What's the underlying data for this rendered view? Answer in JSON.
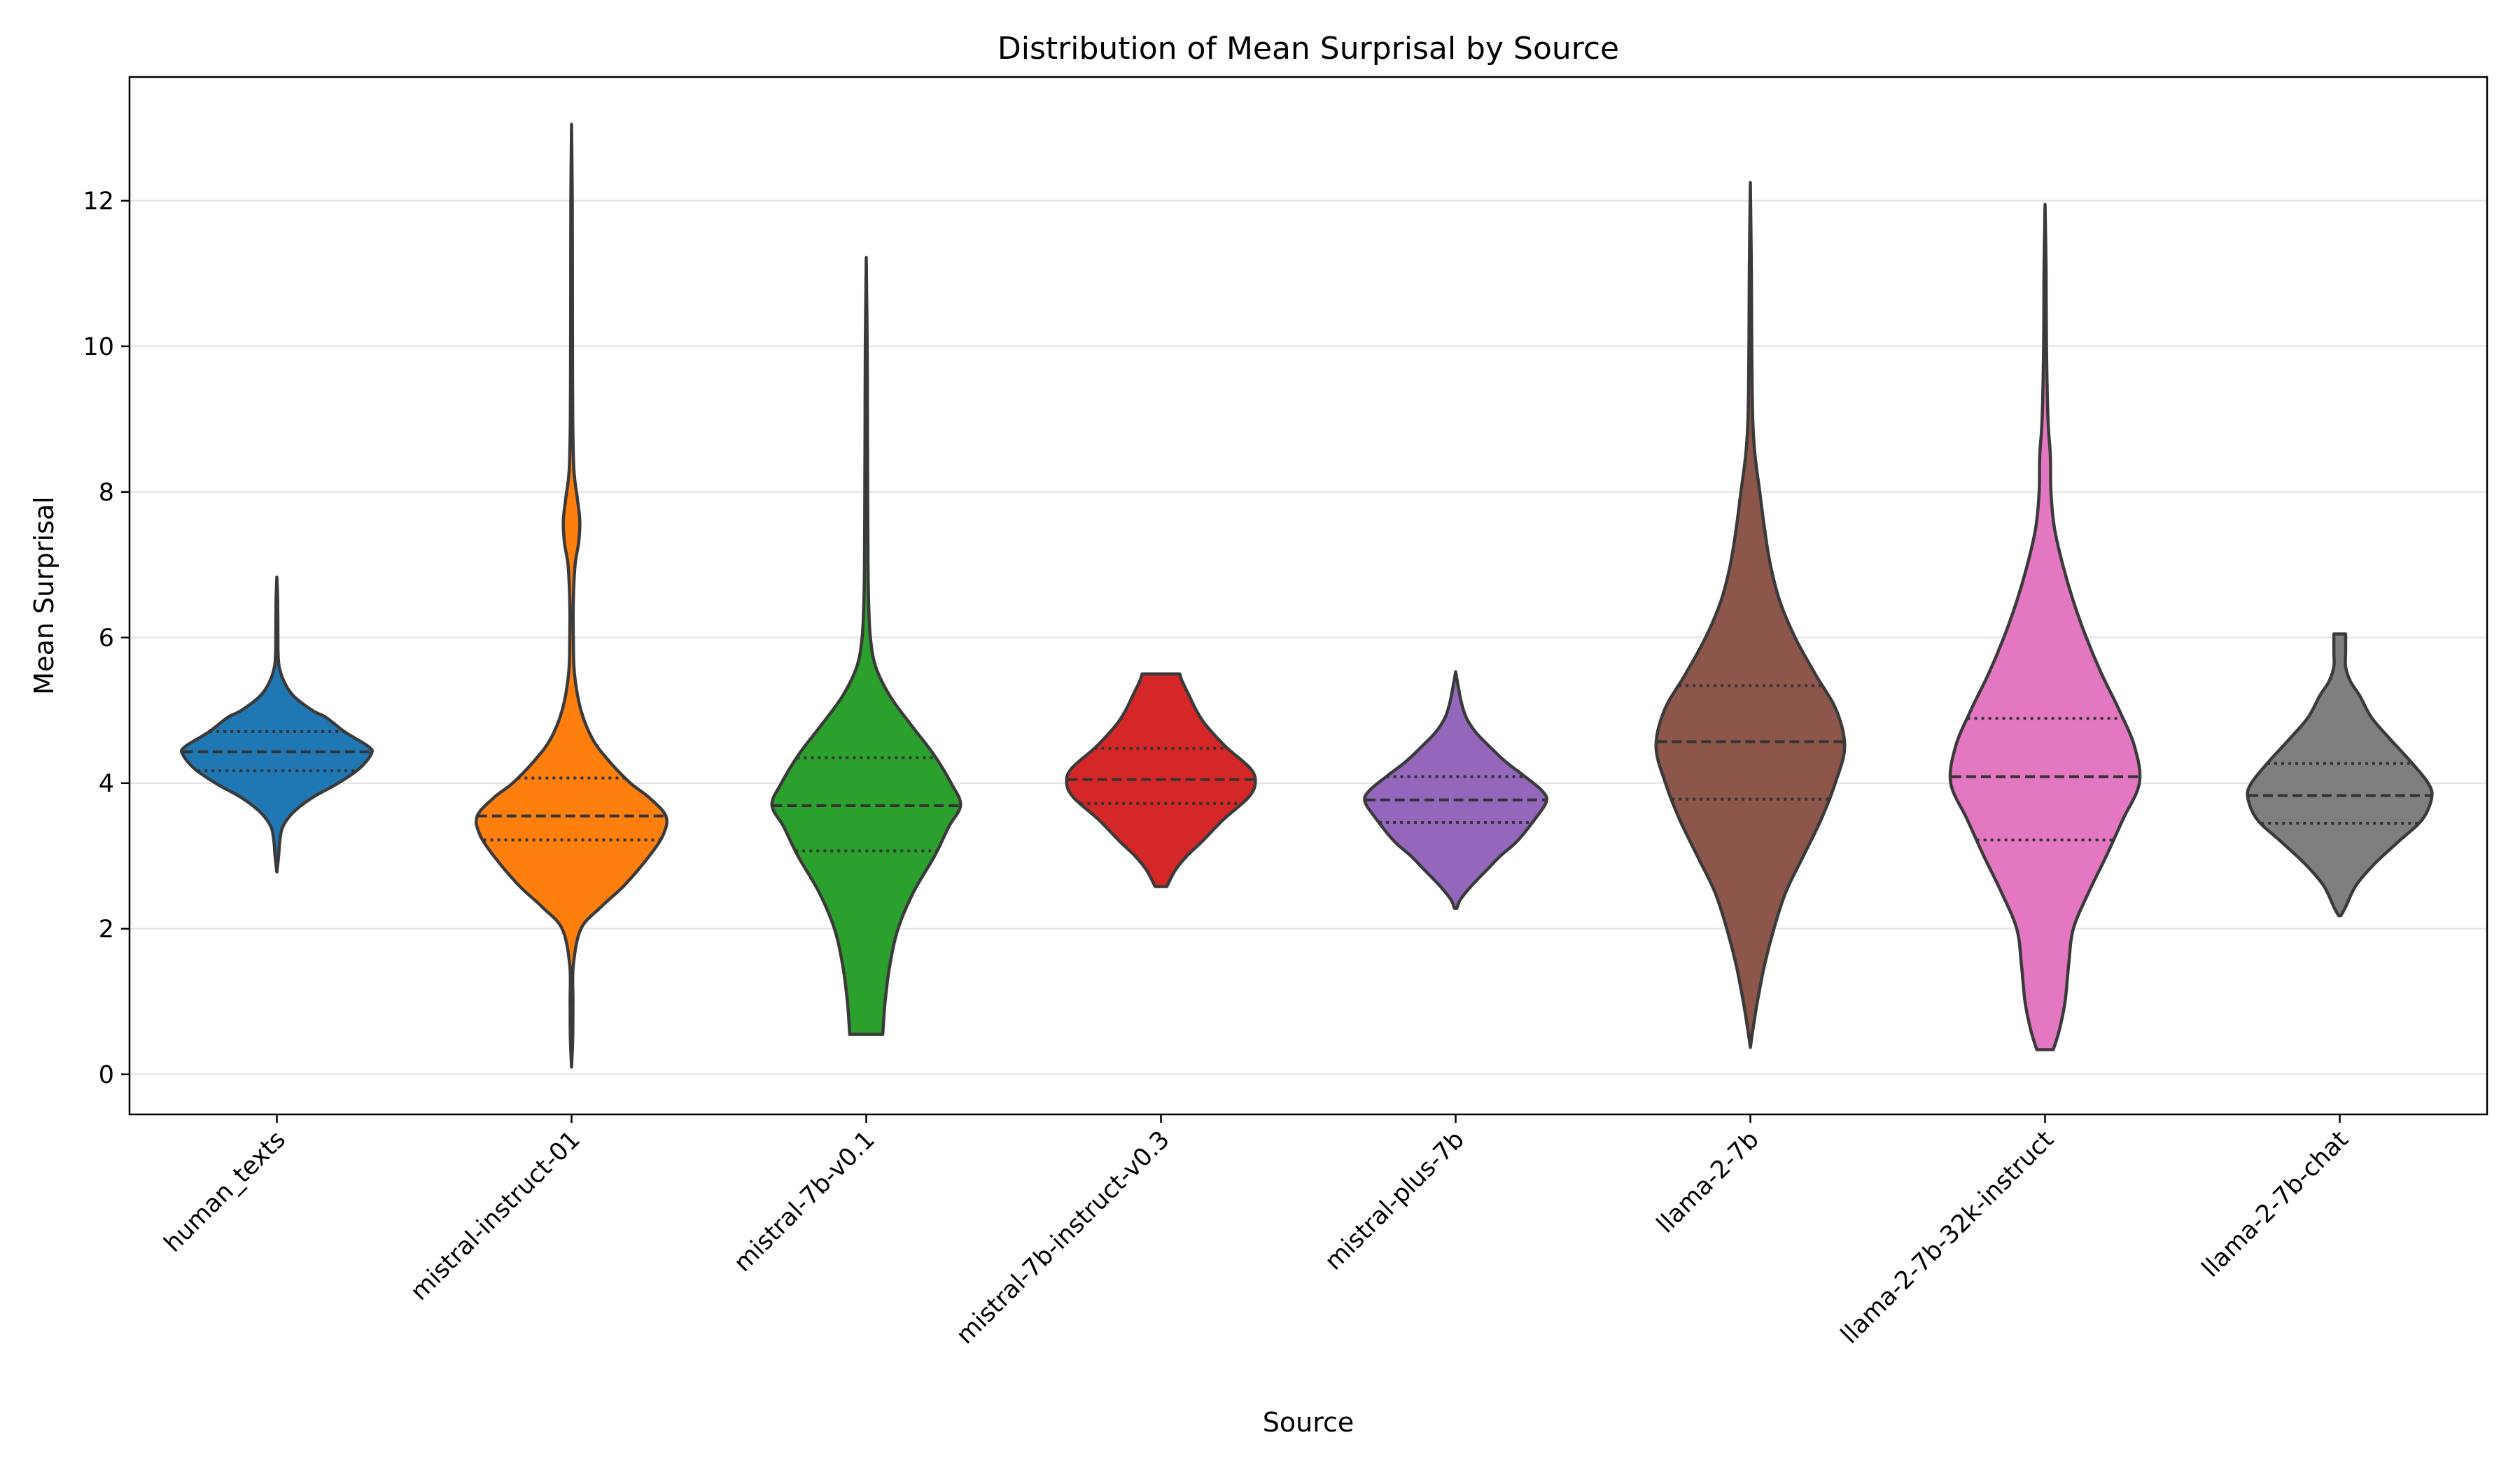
{
  "chart_data": {
    "type": "violin",
    "title": "Distribution of Mean Surprisal by Source",
    "xlabel": "Source",
    "ylabel": "Mean Surprisal",
    "ylim": [
      -0.55,
      13.7
    ],
    "yticks": [
      0,
      2,
      4,
      6,
      8,
      10,
      12
    ],
    "grid": "horizontal",
    "categories": [
      "human_texts",
      "mistral-instruct-01",
      "mistral-7b-v0.1",
      "mistral-7b-instruct-v0.3",
      "mistral-plus-7b",
      "llama-2-7b",
      "llama-2-7b-32k-instruct",
      "llama-2-7b-chat"
    ],
    "colors": [
      "#1f77b4",
      "#ff7f0e",
      "#2ca02c",
      "#d62728",
      "#9467bd",
      "#8c564b",
      "#e377c2",
      "#7f7f7f"
    ],
    "series": [
      {
        "min": 2.78,
        "max": 6.83,
        "q1": 4.17,
        "median": 4.43,
        "q3": 4.71,
        "profile": [
          [
            2.78,
            0.0
          ],
          [
            3.0,
            0.015
          ],
          [
            3.2,
            0.025
          ],
          [
            3.4,
            0.05
          ],
          [
            3.6,
            0.14
          ],
          [
            3.8,
            0.3
          ],
          [
            4.0,
            0.52
          ],
          [
            4.2,
            0.7
          ],
          [
            4.4,
            0.8
          ],
          [
            4.5,
            0.78
          ],
          [
            4.7,
            0.58
          ],
          [
            4.9,
            0.42
          ],
          [
            5.0,
            0.3
          ],
          [
            5.2,
            0.14
          ],
          [
            5.4,
            0.06
          ],
          [
            5.6,
            0.02
          ],
          [
            5.8,
            0.01
          ],
          [
            6.0,
            0.009
          ],
          [
            6.5,
            0.007
          ],
          [
            6.83,
            0.0
          ]
        ]
      },
      {
        "min": 0.1,
        "max": 13.05,
        "q1": 3.22,
        "median": 3.55,
        "q3": 4.07,
        "profile": [
          [
            0.1,
            0.0
          ],
          [
            0.5,
            0.01
          ],
          [
            1.0,
            0.012
          ],
          [
            1.5,
            0.015
          ],
          [
            2.0,
            0.08
          ],
          [
            2.3,
            0.25
          ],
          [
            2.6,
            0.45
          ],
          [
            3.0,
            0.66
          ],
          [
            3.3,
            0.78
          ],
          [
            3.55,
            0.8
          ],
          [
            3.8,
            0.66
          ],
          [
            4.0,
            0.5
          ],
          [
            4.3,
            0.32
          ],
          [
            4.6,
            0.18
          ],
          [
            5.0,
            0.08
          ],
          [
            5.5,
            0.025
          ],
          [
            6.0,
            0.015
          ],
          [
            6.5,
            0.015
          ],
          [
            7.0,
            0.03
          ],
          [
            7.3,
            0.06
          ],
          [
            7.6,
            0.07
          ],
          [
            7.9,
            0.05
          ],
          [
            8.3,
            0.02
          ],
          [
            9.0,
            0.01
          ],
          [
            10.0,
            0.008
          ],
          [
            11.0,
            0.007
          ],
          [
            12.0,
            0.006
          ],
          [
            13.05,
            0.0
          ]
        ]
      },
      {
        "min": 0.55,
        "max": 11.22,
        "q1": 3.07,
        "median": 3.69,
        "q3": 4.35,
        "profile": [
          [
            0.55,
            0.14
          ],
          [
            1.0,
            0.16
          ],
          [
            1.5,
            0.2
          ],
          [
            2.0,
            0.27
          ],
          [
            2.5,
            0.4
          ],
          [
            3.0,
            0.58
          ],
          [
            3.4,
            0.7
          ],
          [
            3.7,
            0.8
          ],
          [
            4.0,
            0.72
          ],
          [
            4.4,
            0.57
          ],
          [
            4.8,
            0.38
          ],
          [
            5.2,
            0.2
          ],
          [
            5.6,
            0.08
          ],
          [
            6.0,
            0.035
          ],
          [
            6.5,
            0.02
          ],
          [
            7.0,
            0.015
          ],
          [
            8.0,
            0.012
          ],
          [
            9.0,
            0.01
          ],
          [
            10.0,
            0.008
          ],
          [
            11.22,
            0.0
          ]
        ]
      },
      {
        "min": 2.58,
        "max": 5.5,
        "q1": 3.72,
        "median": 4.05,
        "q3": 4.48,
        "profile": [
          [
            2.58,
            0.05
          ],
          [
            2.8,
            0.12
          ],
          [
            3.0,
            0.22
          ],
          [
            3.2,
            0.35
          ],
          [
            3.5,
            0.53
          ],
          [
            3.8,
            0.74
          ],
          [
            4.0,
            0.8
          ],
          [
            4.2,
            0.76
          ],
          [
            4.5,
            0.55
          ],
          [
            4.8,
            0.38
          ],
          [
            5.0,
            0.3
          ],
          [
            5.2,
            0.24
          ],
          [
            5.4,
            0.18
          ],
          [
            5.5,
            0.16
          ]
        ]
      },
      {
        "min": 2.28,
        "max": 5.53,
        "q1": 3.46,
        "median": 3.77,
        "q3": 4.09,
        "profile": [
          [
            2.28,
            0.01
          ],
          [
            2.4,
            0.04
          ],
          [
            2.6,
            0.14
          ],
          [
            2.8,
            0.26
          ],
          [
            3.0,
            0.38
          ],
          [
            3.2,
            0.52
          ],
          [
            3.5,
            0.67
          ],
          [
            3.75,
            0.77
          ],
          [
            3.9,
            0.73
          ],
          [
            4.1,
            0.58
          ],
          [
            4.3,
            0.42
          ],
          [
            4.5,
            0.29
          ],
          [
            4.7,
            0.17
          ],
          [
            4.9,
            0.09
          ],
          [
            5.1,
            0.05
          ],
          [
            5.3,
            0.025
          ],
          [
            5.53,
            0.0
          ]
        ]
      },
      {
        "min": 0.37,
        "max": 12.25,
        "q1": 3.78,
        "median": 4.57,
        "q3": 5.34,
        "profile": [
          [
            0.37,
            0.0
          ],
          [
            0.6,
            0.02
          ],
          [
            1.0,
            0.06
          ],
          [
            1.5,
            0.12
          ],
          [
            2.0,
            0.2
          ],
          [
            2.5,
            0.3
          ],
          [
            3.0,
            0.45
          ],
          [
            3.5,
            0.6
          ],
          [
            4.0,
            0.72
          ],
          [
            4.5,
            0.8
          ],
          [
            5.0,
            0.73
          ],
          [
            5.5,
            0.55
          ],
          [
            6.0,
            0.38
          ],
          [
            6.5,
            0.25
          ],
          [
            7.0,
            0.17
          ],
          [
            7.5,
            0.12
          ],
          [
            8.0,
            0.08
          ],
          [
            8.5,
            0.04
          ],
          [
            9.0,
            0.02
          ],
          [
            10.0,
            0.012
          ],
          [
            11.0,
            0.009
          ],
          [
            12.25,
            0.0
          ]
        ]
      },
      {
        "min": 0.34,
        "max": 11.95,
        "q1": 3.22,
        "median": 4.09,
        "q3": 4.89,
        "profile": [
          [
            0.34,
            0.07
          ],
          [
            0.6,
            0.12
          ],
          [
            1.0,
            0.17
          ],
          [
            1.5,
            0.2
          ],
          [
            2.0,
            0.24
          ],
          [
            2.5,
            0.37
          ],
          [
            3.0,
            0.52
          ],
          [
            3.5,
            0.66
          ],
          [
            4.0,
            0.8
          ],
          [
            4.5,
            0.76
          ],
          [
            5.0,
            0.63
          ],
          [
            5.5,
            0.48
          ],
          [
            6.0,
            0.35
          ],
          [
            6.5,
            0.24
          ],
          [
            7.0,
            0.15
          ],
          [
            7.5,
            0.08
          ],
          [
            8.0,
            0.05
          ],
          [
            8.5,
            0.045
          ],
          [
            9.0,
            0.025
          ],
          [
            10.0,
            0.012
          ],
          [
            11.0,
            0.009
          ],
          [
            11.95,
            0.0
          ]
        ]
      },
      {
        "min": 2.18,
        "max": 6.05,
        "q1": 3.45,
        "median": 3.83,
        "q3": 4.27,
        "profile": [
          [
            2.18,
            0.01
          ],
          [
            2.3,
            0.05
          ],
          [
            2.6,
            0.14
          ],
          [
            2.9,
            0.3
          ],
          [
            3.2,
            0.5
          ],
          [
            3.5,
            0.7
          ],
          [
            3.8,
            0.78
          ],
          [
            4.0,
            0.75
          ],
          [
            4.3,
            0.6
          ],
          [
            4.6,
            0.43
          ],
          [
            4.9,
            0.27
          ],
          [
            5.2,
            0.17
          ],
          [
            5.4,
            0.09
          ],
          [
            5.6,
            0.05
          ],
          [
            5.8,
            0.05
          ],
          [
            6.0,
            0.05
          ],
          [
            6.05,
            0.05
          ]
        ]
      }
    ]
  }
}
